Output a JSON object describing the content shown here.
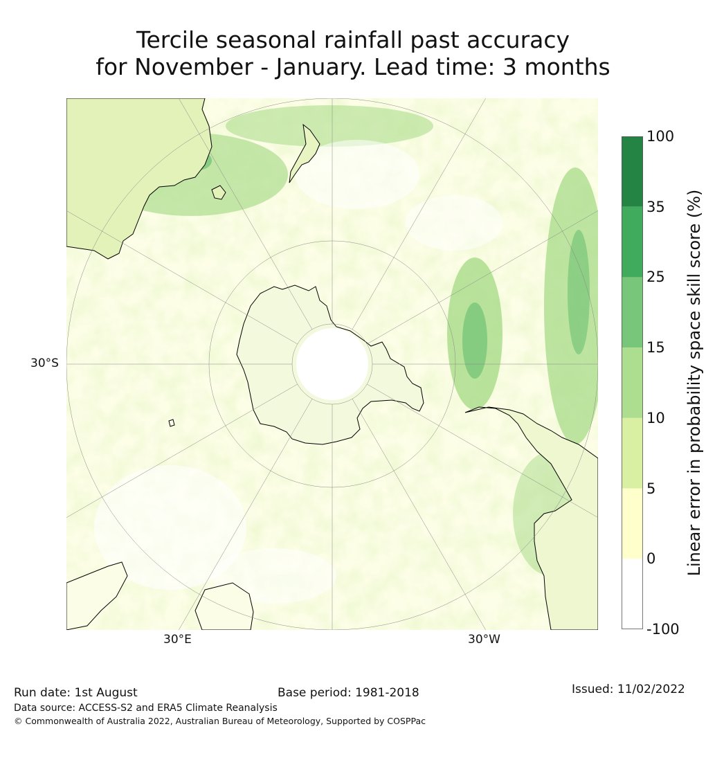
{
  "title": {
    "line1": "Tercile seasonal rainfall past accuracy",
    "line2": "for November - January. Lead time: 3 months"
  },
  "map": {
    "projection": "south-polar stereographic",
    "lat_labels": [
      "30°S"
    ],
    "lon_labels": [
      "30°E",
      "30°W"
    ],
    "graticule": "grey thin lines",
    "coastline_color": "#000000"
  },
  "colorbar": {
    "label": "Linear error in probability space skill score (%)",
    "ticks": [
      "100",
      "35",
      "25",
      "15",
      "10",
      "5",
      "0",
      "-100"
    ],
    "bins": [
      {
        "range": "35 to 100",
        "color": "#238443"
      },
      {
        "range": "25 to 35",
        "color": "#41ab5d"
      },
      {
        "range": "15 to 25",
        "color": "#78c679"
      },
      {
        "range": "10 to 15",
        "color": "#addd8e"
      },
      {
        "range": "5 to 10",
        "color": "#d9f0a3"
      },
      {
        "range": "0 to 5",
        "color": "#ffffcc"
      },
      {
        "range": "-100 to 0",
        "color": "#ffffff"
      }
    ]
  },
  "footer": {
    "run_date": "Run date: 1st August",
    "base_period": "Base period: 1981-2018",
    "issued": "Issued: 11/02/2022",
    "data_source": "Data source: ACCESS-S2 and ERA5 Climate Reanalysis",
    "copyright": "© Commonwealth of Australia 2022, Australian Bureau of Meteorology, Supported by COSPPac"
  }
}
